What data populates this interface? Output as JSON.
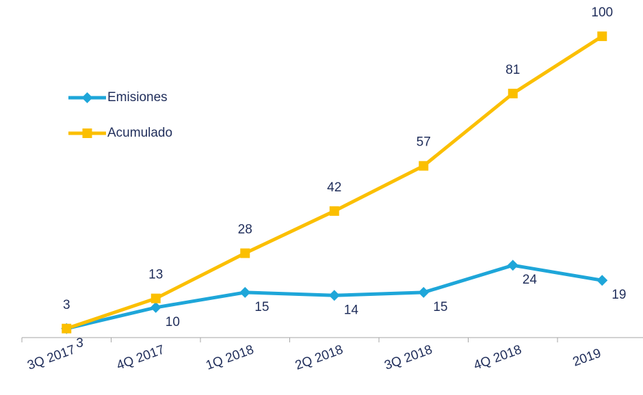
{
  "chart_data": {
    "type": "line",
    "categories": [
      "3Q 2017",
      "4Q 2017",
      "1Q 2018",
      "2Q 2018",
      "3Q 2018",
      "4Q 2018",
      "2019"
    ],
    "series": [
      {
        "name": "Emisiones",
        "color": "#1ea6d9",
        "values": [
          3,
          10,
          15,
          14,
          15,
          24,
          19
        ]
      },
      {
        "name": "Acumulado",
        "color": "#fbbf00",
        "values": [
          3,
          13,
          28,
          42,
          57,
          81,
          100
        ]
      }
    ],
    "ylim": [
      0,
      110
    ],
    "legend": "upper left"
  }
}
